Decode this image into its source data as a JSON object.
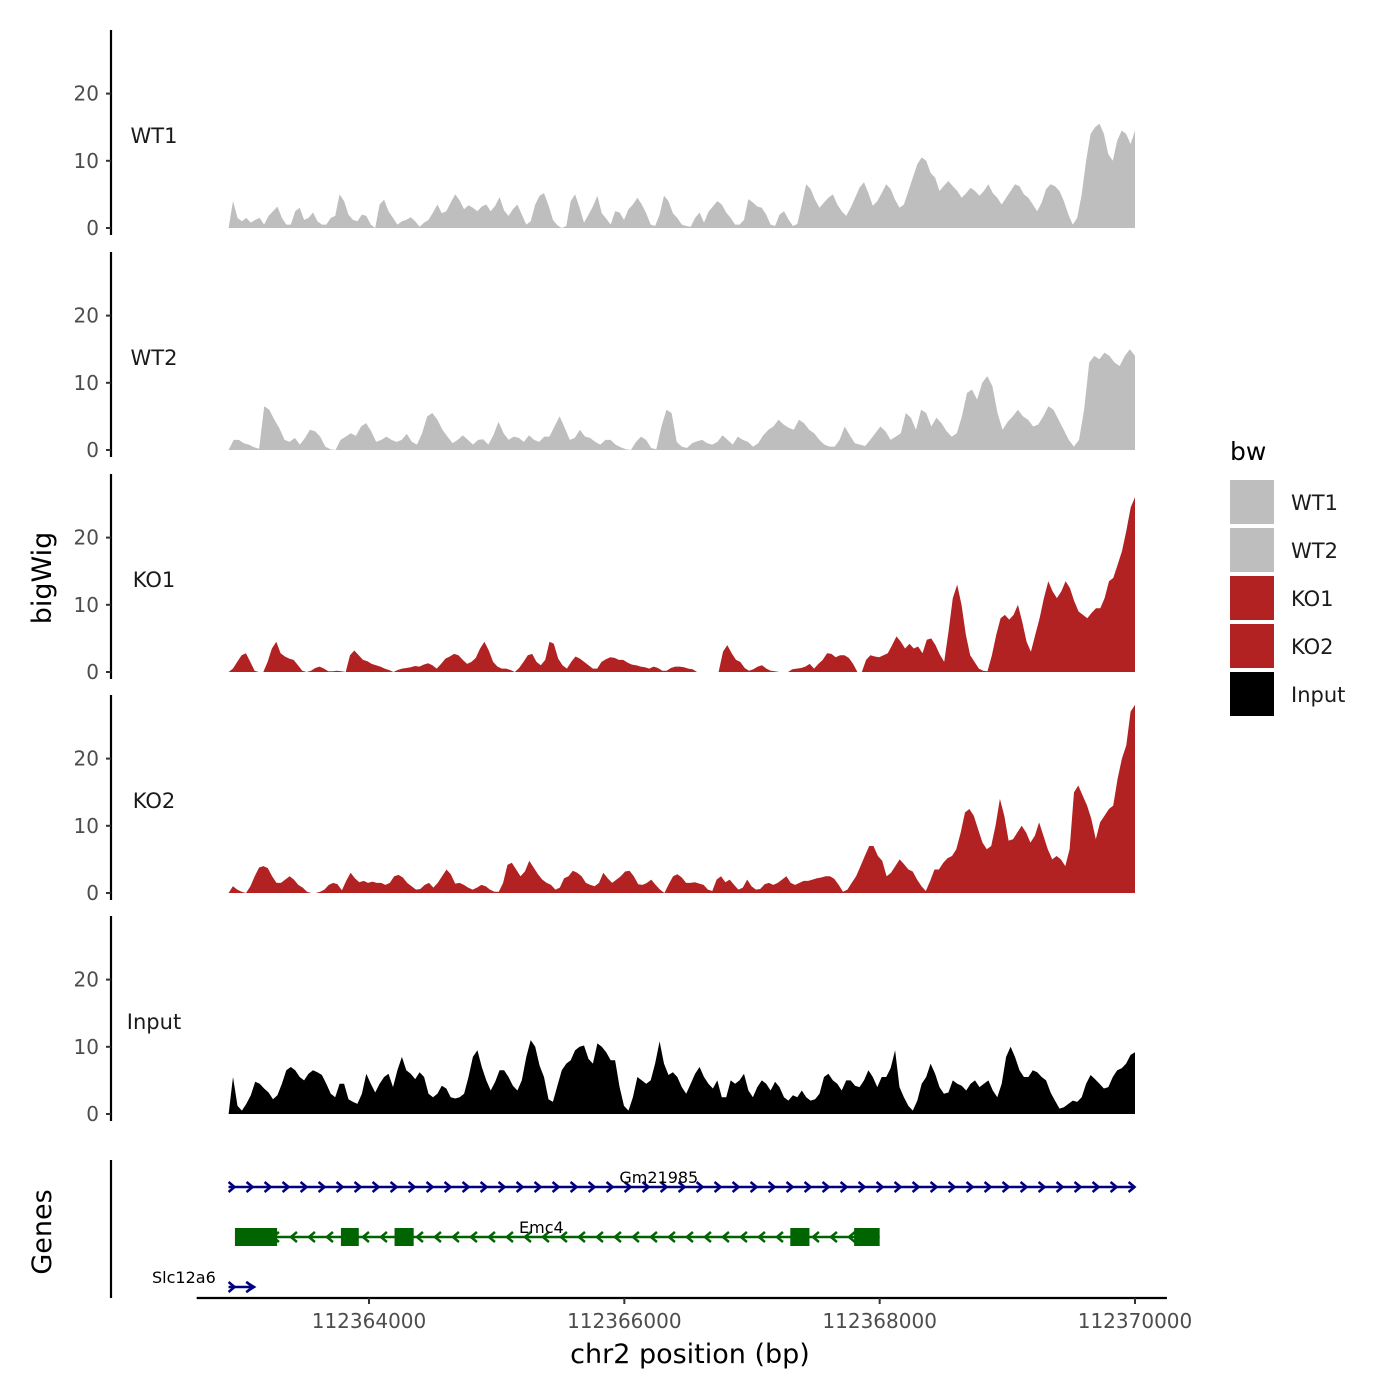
{
  "chart_data": {
    "type": "area",
    "title": "",
    "xlabel": "chr2 position (bp)",
    "ylabel": "bigWig",
    "genes_label": "Genes",
    "x_range": [
      112362900,
      112370000
    ],
    "x_axis_limits": [
      112362650,
      112370250
    ],
    "xticks": [
      112364000,
      112366000,
      112368000,
      112370000
    ],
    "xtick_labels": [
      "112364000",
      "112366000",
      "112368000",
      "112370000"
    ],
    "ylim": [
      0,
      29
    ],
    "yticks": [
      0,
      10,
      20
    ],
    "ytick_labels": [
      "0",
      "10",
      "20"
    ],
    "series": [
      {
        "name": "WT1",
        "color": "#BEBEBE",
        "values": [
          0,
          4,
          1.5,
          1,
          1.5,
          0.8,
          1.2,
          1.5,
          0.5,
          1.8,
          2.5,
          3.2,
          1.5,
          0.5,
          0.5,
          2.5,
          3,
          1.2,
          1.5,
          2.3,
          1,
          0.5,
          0.5,
          1.5,
          1.8,
          5,
          4,
          2,
          1.2,
          1,
          2,
          1.8,
          0.5,
          0,
          3.5,
          4.2,
          2.5,
          1.5,
          0.5,
          1,
          1.2,
          1.6,
          1,
          0.2,
          0.8,
          1.2,
          2.3,
          3.5,
          2.2,
          2.5,
          3.8,
          5,
          4.1,
          2.8,
          3.4,
          3,
          2.5,
          3.2,
          3.5,
          2.5,
          3.3,
          4.6,
          2.6,
          1.8,
          2.8,
          3.5,
          2,
          0.5,
          1,
          3.5,
          4.8,
          5.2,
          3.4,
          1.2,
          0.4,
          0,
          0.3,
          4,
          5,
          3,
          0.8,
          2,
          3.2,
          4.8,
          2.2,
          1.4,
          0.5,
          2.5,
          2.3,
          1.2,
          2.8,
          3.5,
          4.5,
          3.5,
          2.2,
          0.5,
          0.3,
          2,
          4.8,
          4,
          2.2,
          1.5,
          0.5,
          0.3,
          0.2,
          1.5,
          2.3,
          0.8,
          2.4,
          3.2,
          4,
          3.5,
          2.3,
          1.5,
          0.5,
          0.5,
          1.2,
          4.3,
          3.8,
          3.2,
          3,
          2,
          0.5,
          0.3,
          2,
          2.5,
          1.3,
          0.3,
          0.6,
          3.5,
          6.5,
          5.8,
          4.2,
          3,
          3.8,
          4.5,
          5,
          3.5,
          2.5,
          1.8,
          3,
          4.5,
          6,
          6.8,
          5.2,
          3.3,
          4,
          5.2,
          6.5,
          5.8,
          4.2,
          3,
          3.5,
          5.5,
          7.5,
          9.5,
          10.5,
          10,
          8.2,
          7.5,
          5.5,
          6.3,
          7,
          6.2,
          5.5,
          4.5,
          5.2,
          6,
          5.5,
          4.8,
          5.5,
          6.5,
          5.2,
          4.5,
          3.5,
          4.5,
          5.5,
          6.5,
          6.2,
          5,
          4.5,
          3.5,
          2.5,
          3.8,
          5.8,
          6.5,
          6.2,
          5.5,
          4,
          2,
          0.5,
          1.5,
          5,
          10,
          14,
          15,
          15.5,
          14,
          11,
          10,
          13,
          14.5,
          14,
          12.5,
          14.5
        ]
      },
      {
        "name": "WT2",
        "color": "#BEBEBE",
        "values": [
          0,
          1.5,
          1.5,
          1,
          0.8,
          0.4,
          0.2,
          6.5,
          6,
          4.5,
          3.2,
          1.5,
          1.2,
          1.8,
          0.8,
          1.8,
          3,
          2.8,
          2,
          0.5,
          0.1,
          0,
          1.5,
          2,
          2.5,
          2.1,
          3.5,
          4,
          2.8,
          1.2,
          1.5,
          2,
          1.5,
          1.2,
          1.5,
          2.4,
          1.2,
          0.8,
          2.5,
          5,
          5.5,
          4.5,
          3,
          2,
          1,
          1.5,
          2.2,
          1.5,
          0.8,
          1.5,
          1.6,
          0.8,
          2.2,
          4.2,
          2.5,
          1.5,
          2,
          1.8,
          1.2,
          2.2,
          1.5,
          1.2,
          2,
          2,
          3.5,
          5,
          3.3,
          1.5,
          1.8,
          3,
          2,
          1.8,
          1.2,
          0.8,
          1.5,
          1.5,
          0.8,
          0.4,
          0.1,
          0,
          1.2,
          2,
          1.5,
          0.3,
          0.1,
          3.5,
          6,
          5.5,
          1.2,
          0.5,
          0.3,
          1,
          1.3,
          1.5,
          1,
          0.8,
          1.2,
          2.2,
          1.5,
          0.8,
          2,
          1.5,
          1.2,
          0.5,
          1,
          2.2,
          3,
          3.5,
          4.5,
          3.8,
          3.3,
          3,
          4.5,
          4,
          3,
          2.5,
          1.5,
          0.8,
          0.5,
          0.5,
          1.5,
          3.5,
          2.2,
          1,
          0.8,
          0.6,
          1.5,
          2.5,
          3.5,
          2.8,
          1.5,
          2,
          2.5,
          5.5,
          4.8,
          3,
          6,
          5.5,
          3.5,
          4.8,
          4,
          2.8,
          2,
          2.5,
          5,
          8.5,
          9,
          7.5,
          10,
          11,
          9.5,
          5.5,
          3,
          4.2,
          5,
          6,
          5,
          4.5,
          3.5,
          3.8,
          5,
          6.5,
          6,
          4.5,
          3,
          1.5,
          0.5,
          1.5,
          6,
          13,
          14,
          13.5,
          14.5,
          14,
          13,
          12.5,
          14,
          15,
          14
        ]
      },
      {
        "name": "KO1",
        "color": "#B22222",
        "values": [
          0,
          0.5,
          1.5,
          2.5,
          2.8,
          1.5,
          0.2,
          0,
          0,
          1.5,
          3.5,
          4.5,
          2.8,
          2.3,
          2,
          1.8,
          1,
          0.2,
          0,
          0.2,
          0.6,
          0.8,
          0.5,
          0.1,
          0.1,
          0.2,
          0.1,
          0,
          2.5,
          3.2,
          2.5,
          1.8,
          1.6,
          1.2,
          1,
          0.8,
          0.5,
          0.3,
          0,
          0.3,
          0.5,
          0.6,
          0.7,
          0.9,
          0.8,
          1.1,
          1.3,
          1,
          0.5,
          1.2,
          2,
          2.3,
          2.7,
          2.5,
          1.8,
          1.2,
          1.5,
          2.1,
          3.5,
          4.5,
          3.2,
          1.5,
          0.8,
          0.5,
          0.5,
          0.3,
          0,
          0.6,
          1.5,
          2.5,
          2.7,
          1.5,
          1,
          1.8,
          4.5,
          4.2,
          2,
          1,
          0.5,
          1.5,
          2.3,
          2,
          1.5,
          1,
          0.5,
          0.5,
          1.5,
          1.9,
          2.2,
          2.1,
          1.8,
          1.8,
          1.4,
          1.1,
          1,
          0.8,
          0.7,
          0.5,
          0.8,
          0.6,
          0.2,
          0.2,
          0.6,
          0.8,
          0.8,
          0.7,
          0.5,
          0.4,
          0,
          0,
          0,
          0,
          0,
          0,
          3,
          4,
          2.8,
          1.8,
          1.5,
          0.6,
          0.2,
          0.4,
          0.8,
          1,
          0.5,
          0.2,
          0.1,
          0,
          0,
          0,
          0.4,
          0.5,
          0.6,
          0.8,
          1.2,
          0.5,
          1.2,
          1.8,
          2.8,
          2.7,
          2.2,
          2.5,
          2.5,
          2.1,
          1.2,
          0,
          0,
          1.8,
          2.5,
          2.3,
          2.2,
          2.5,
          2.8,
          4,
          5.3,
          4.5,
          3.5,
          4.2,
          3.5,
          3.8,
          2.8,
          4.8,
          5,
          4,
          2.6,
          1.5,
          6,
          11,
          13,
          10,
          5.5,
          2.5,
          1.5,
          0.5,
          0.2,
          0.1,
          2.5,
          5.5,
          8,
          8.5,
          7.8,
          8.5,
          10,
          7.5,
          4.5,
          3,
          5.5,
          8,
          11,
          13.5,
          12,
          11,
          12,
          13.5,
          12.5,
          10.5,
          9,
          8.5,
          8,
          8.8,
          9.5,
          9.5,
          11,
          13.5,
          14,
          16,
          18,
          21,
          24.5,
          26
        ]
      },
      {
        "name": "KO2",
        "color": "#B22222",
        "values": [
          0,
          1,
          0.5,
          0.2,
          0,
          1,
          2.5,
          3.8,
          4,
          3.7,
          2.5,
          1.5,
          1.5,
          2,
          2.5,
          2,
          1.2,
          0.8,
          0.2,
          0,
          0,
          0.2,
          0.5,
          1.2,
          1.5,
          1.3,
          0.4,
          1.8,
          3,
          2.2,
          1.6,
          1.8,
          1.5,
          1.7,
          1.5,
          1.5,
          1.2,
          1.5,
          2.5,
          2.7,
          2.3,
          1.5,
          1,
          0.5,
          0.6,
          1.2,
          1.5,
          0.8,
          1.5,
          2.5,
          3.5,
          2.8,
          1.4,
          1.5,
          1.2,
          0.8,
          0.5,
          0.8,
          1.2,
          1,
          0.5,
          0.2,
          0.2,
          1.5,
          4.2,
          4.5,
          3.5,
          2.5,
          3.2,
          4.8,
          3.8,
          2.8,
          2,
          1.5,
          1.2,
          0.5,
          0.8,
          2.2,
          2.5,
          3.3,
          3,
          2.5,
          1.5,
          1.2,
          1,
          1.5,
          3,
          2.2,
          1.5,
          2,
          2.5,
          3.2,
          3.3,
          2.5,
          1.3,
          1.2,
          1.5,
          2,
          1.2,
          0.5,
          0,
          1.3,
          2.5,
          2.8,
          2.3,
          1.5,
          1.5,
          1.6,
          1.4,
          1.2,
          0.5,
          0.3,
          2,
          2.5,
          1.6,
          2,
          1.2,
          0.5,
          0.8,
          2,
          1,
          0.5,
          0.6,
          1.3,
          1.5,
          1.2,
          1.5,
          2,
          2.5,
          1.5,
          1.2,
          1.5,
          1.8,
          1.8,
          2,
          2.2,
          2.3,
          2.5,
          2.5,
          2.1,
          1.2,
          0.2,
          0.5,
          1.5,
          2.5,
          4,
          5.5,
          7,
          7,
          5.5,
          4.8,
          2.5,
          3,
          4,
          5,
          4.3,
          3.5,
          3.2,
          2,
          1,
          0.3,
          1.8,
          3.5,
          3.5,
          4.5,
          5.2,
          5.5,
          6.5,
          9,
          12,
          12.5,
          11.5,
          9.5,
          7.5,
          6.5,
          7,
          10,
          14,
          11.5,
          7.8,
          8,
          9,
          10,
          9,
          7.5,
          8.5,
          10.5,
          8.5,
          6.5,
          5,
          5.5,
          5,
          4,
          6.5,
          15,
          16,
          14.5,
          13,
          11,
          8,
          10.5,
          11.5,
          12.5,
          13,
          17,
          20,
          22,
          27,
          28
        ]
      },
      {
        "name": "Input",
        "color": "#000000",
        "values": [
          0,
          5.5,
          1.2,
          0.5,
          1.5,
          2.8,
          4.8,
          4.5,
          3.8,
          3.2,
          2.2,
          2.8,
          4.5,
          6.5,
          7,
          6.5,
          5.5,
          5,
          6,
          6.5,
          6.2,
          5.8,
          4.5,
          3,
          2.5,
          4.5,
          4.5,
          2.2,
          1.8,
          1.5,
          3,
          6,
          4.5,
          3.2,
          4.5,
          5.5,
          6,
          4,
          6.5,
          8.5,
          6.5,
          6,
          5.2,
          6.2,
          5.5,
          3,
          2.5,
          3,
          4.2,
          3.8,
          2.5,
          2.3,
          2.5,
          3,
          5.5,
          8.5,
          9.5,
          7,
          5,
          3.5,
          4.8,
          6.5,
          6.5,
          5.5,
          4.2,
          3.5,
          5,
          8.5,
          11,
          10,
          7.2,
          5.5,
          2.2,
          1.8,
          4.2,
          6.5,
          7.5,
          8,
          9.5,
          10,
          10.2,
          8.2,
          7.5,
          10.5,
          10,
          9.2,
          8,
          8,
          4,
          1.2,
          0.5,
          2.5,
          5.5,
          5,
          4.5,
          5,
          7.5,
          10.8,
          7.5,
          5.8,
          6.2,
          5.5,
          4,
          3,
          4.5,
          6,
          7,
          5.5,
          4.5,
          3.8,
          5,
          2.5,
          2.5,
          5,
          4.5,
          5,
          6,
          3.5,
          2.5,
          4,
          5,
          4.5,
          3.5,
          4.8,
          4,
          2.5,
          2,
          2.8,
          2.5,
          3.5,
          2.5,
          2,
          2.2,
          3,
          5.5,
          6,
          5,
          4.5,
          3.5,
          5,
          5,
          4.2,
          4,
          5,
          6.5,
          5.5,
          4,
          5.5,
          5.5,
          6.8,
          9.5,
          4,
          2.5,
          1.2,
          0.5,
          2,
          4.5,
          5.5,
          7.5,
          6,
          4,
          3,
          3.2,
          5,
          4.5,
          4.2,
          3.5,
          4.5,
          5,
          4,
          4.5,
          5,
          3.5,
          2.5,
          4.5,
          8.5,
          10,
          8.5,
          6.5,
          5.5,
          5.5,
          6.5,
          6.2,
          5.5,
          5,
          3.2,
          2,
          0.8,
          1,
          1.5,
          2,
          1.8,
          2.5,
          4.5,
          5.8,
          5.2,
          4.5,
          3.8,
          4,
          5.5,
          6.5,
          6.8,
          7.5,
          8.8,
          9.2
        ]
      }
    ],
    "genes": [
      {
        "name": "Gm21985",
        "strand": "+",
        "color": "#000080",
        "start": 112362900,
        "end": 112370000,
        "label_x": 112366270,
        "exons": []
      },
      {
        "name": "Emc4",
        "strand": "-",
        "color": "#006400",
        "start": 112362950,
        "end": 112368000,
        "label_x": 112365350,
        "exons": [
          [
            112362950,
            112363280
          ],
          [
            112363780,
            112363920
          ],
          [
            112364200,
            112364350
          ],
          [
            112367300,
            112367450
          ],
          [
            112367800,
            112368000
          ]
        ]
      },
      {
        "name": "Slc12a6",
        "strand": "+",
        "color": "#000080",
        "start": 112362900,
        "end": 112363100,
        "label_x": 112362550,
        "exons": []
      }
    ],
    "legend": {
      "title": "bw",
      "position": "right",
      "entries": [
        {
          "label": "WT1",
          "color": "#BEBEBE"
        },
        {
          "label": "WT2",
          "color": "#BEBEBE"
        },
        {
          "label": "KO1",
          "color": "#B22222"
        },
        {
          "label": "KO2",
          "color": "#B22222"
        },
        {
          "label": "Input",
          "color": "#000000"
        }
      ]
    }
  }
}
